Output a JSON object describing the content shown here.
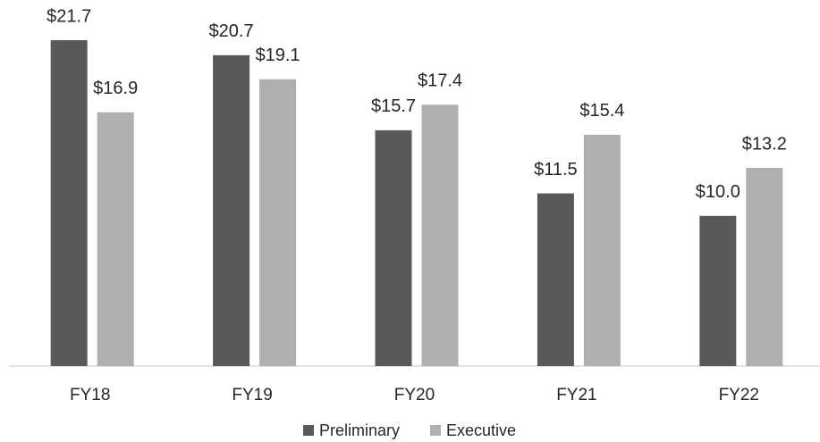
{
  "chart_data": {
    "type": "bar",
    "categories": [
      "FY18",
      "FY19",
      "FY20",
      "FY21",
      "FY22"
    ],
    "series": [
      {
        "name": "Preliminary",
        "color": "#595959",
        "values": [
          21.7,
          20.7,
          15.7,
          11.5,
          10.0
        ],
        "value_labels": [
          "$21.7",
          "$20.7",
          "$15.7",
          "$11.5",
          "$10.0"
        ]
      },
      {
        "name": "Executive",
        "color": "#afafaf",
        "values": [
          16.9,
          19.1,
          17.4,
          15.4,
          13.2
        ],
        "value_labels": [
          "$16.9",
          "$19.1",
          "$17.4",
          "$15.4",
          "$13.2"
        ]
      }
    ],
    "legend": "bottom"
  }
}
